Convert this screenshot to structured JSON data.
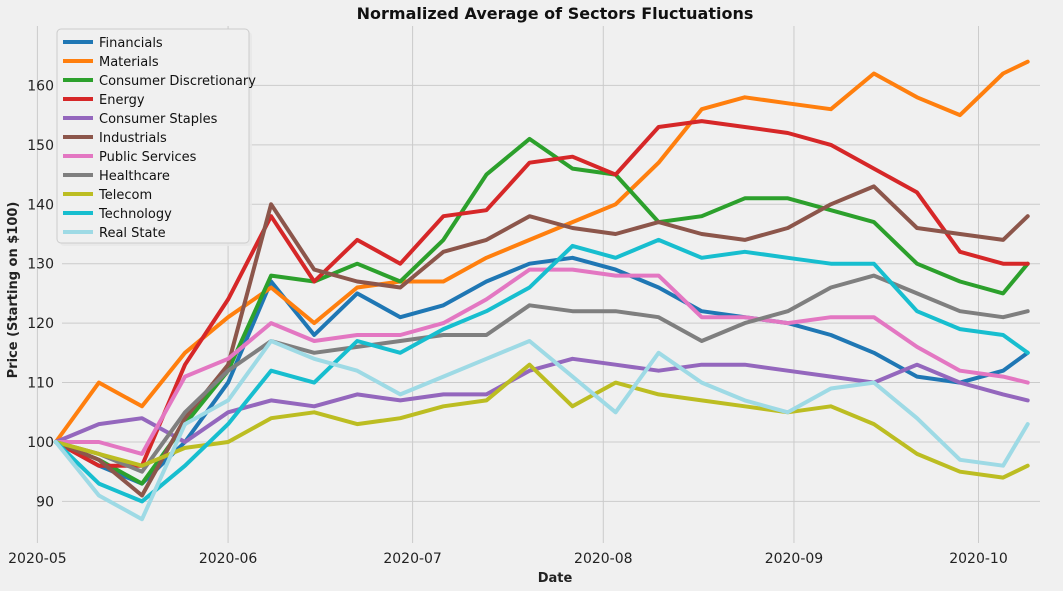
{
  "chart_data": {
    "type": "line",
    "title": "Normalized Average of Sectors Fluctuations",
    "xlabel": "Date",
    "ylabel": "Price (Starting on $100)",
    "xlim": [
      "2020-05-05",
      "2020-10-11"
    ],
    "ylim": [
      83,
      170
    ],
    "x_ticks": [
      "2020-05",
      "2020-06",
      "2020-07",
      "2020-08",
      "2020-09",
      "2020-10"
    ],
    "y_ticks": [
      90,
      100,
      110,
      120,
      130,
      140,
      150,
      160
    ],
    "grid": true,
    "legend_position": "top-left",
    "x": [
      "2020-05-04",
      "2020-05-11",
      "2020-05-18",
      "2020-05-25",
      "2020-06-01",
      "2020-06-08",
      "2020-06-15",
      "2020-06-22",
      "2020-06-29",
      "2020-07-06",
      "2020-07-13",
      "2020-07-20",
      "2020-07-27",
      "2020-08-03",
      "2020-08-10",
      "2020-08-17",
      "2020-08-24",
      "2020-08-31",
      "2020-09-07",
      "2020-09-14",
      "2020-09-21",
      "2020-09-28",
      "2020-10-05",
      "2020-10-09"
    ],
    "series": [
      {
        "name": "Financials",
        "color": "#1f77b4",
        "values": [
          100,
          96,
          93,
          100,
          110,
          127,
          118,
          125,
          121,
          123,
          127,
          130,
          131,
          129,
          126,
          122,
          121,
          120,
          118,
          115,
          111,
          110,
          112,
          115
        ]
      },
      {
        "name": "Materials",
        "color": "#ff7f0e",
        "values": [
          100,
          110,
          106,
          115,
          121,
          126,
          120,
          126,
          127,
          127,
          131,
          134,
          137,
          140,
          147,
          156,
          158,
          157,
          156,
          162,
          158,
          155,
          162,
          164
        ]
      },
      {
        "name": "Consumer Discretionary",
        "color": "#2ca02c",
        "values": [
          100,
          97,
          93,
          103,
          112,
          128,
          127,
          130,
          127,
          134,
          145,
          151,
          146,
          145,
          137,
          138,
          141,
          141,
          139,
          137,
          130,
          127,
          125,
          130
        ]
      },
      {
        "name": "Energy",
        "color": "#d62728",
        "values": [
          100,
          96,
          96,
          113,
          124,
          138,
          127,
          134,
          130,
          138,
          139,
          147,
          148,
          145,
          153,
          154,
          153,
          152,
          150,
          146,
          142,
          132,
          130,
          130
        ]
      },
      {
        "name": "Consumer Staples",
        "color": "#9467bd",
        "values": [
          100,
          103,
          104,
          100,
          105,
          107,
          106,
          108,
          107,
          108,
          108,
          112,
          114,
          113,
          112,
          113,
          113,
          112,
          111,
          110,
          113,
          110,
          108,
          107
        ]
      },
      {
        "name": "Industrials",
        "color": "#8c564b",
        "values": [
          100,
          97,
          91,
          104,
          113,
          140,
          129,
          127,
          126,
          132,
          134,
          138,
          136,
          135,
          137,
          135,
          134,
          136,
          140,
          143,
          136,
          135,
          134,
          138
        ]
      },
      {
        "name": "Public Services",
        "color": "#e377c2",
        "values": [
          100,
          100,
          98,
          111,
          114,
          120,
          117,
          118,
          118,
          120,
          124,
          129,
          129,
          128,
          128,
          121,
          121,
          120,
          121,
          121,
          116,
          112,
          111,
          110
        ]
      },
      {
        "name": "Healthcare",
        "color": "#7f7f7f",
        "values": [
          100,
          98,
          95,
          105,
          112,
          117,
          115,
          116,
          117,
          118,
          118,
          123,
          122,
          122,
          121,
          117,
          120,
          122,
          126,
          128,
          125,
          122,
          121,
          122
        ]
      },
      {
        "name": "Telecom",
        "color": "#bcbd22",
        "values": [
          100,
          98,
          96,
          99,
          100,
          104,
          105,
          103,
          104,
          106,
          107,
          113,
          106,
          110,
          108,
          107,
          106,
          105,
          106,
          103,
          98,
          95,
          94,
          96
        ]
      },
      {
        "name": "Technology",
        "color": "#17becf",
        "values": [
          100,
          93,
          90,
          96,
          103,
          112,
          110,
          117,
          115,
          119,
          122,
          126,
          133,
          131,
          134,
          131,
          132,
          131,
          130,
          130,
          122,
          119,
          118,
          115
        ]
      },
      {
        "name": "Real State",
        "color": "#9edae5",
        "values": [
          100,
          91,
          87,
          103,
          107,
          117,
          114,
          112,
          108,
          111,
          114,
          117,
          111,
          105,
          115,
          110,
          107,
          105,
          109,
          110,
          104,
          97,
          96,
          103
        ]
      }
    ]
  }
}
